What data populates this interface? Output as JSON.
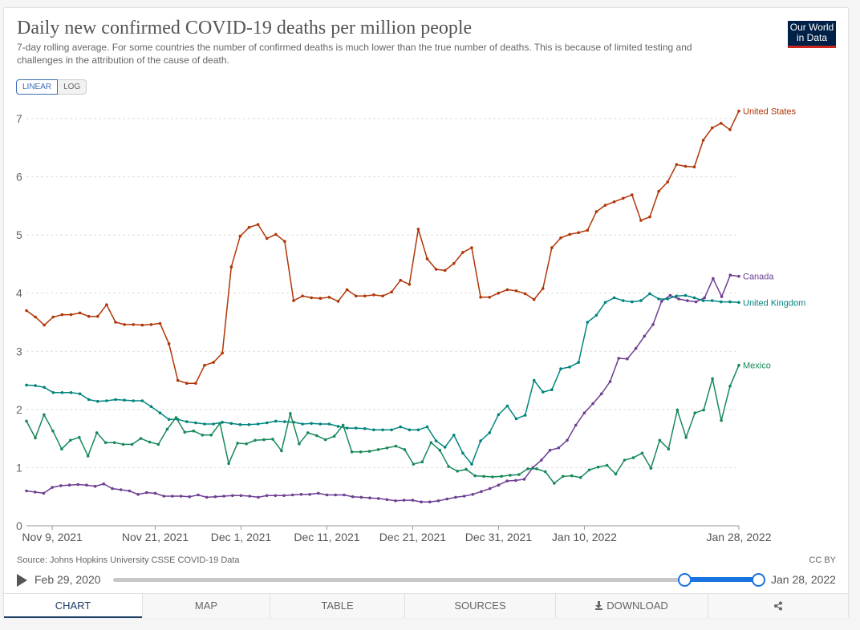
{
  "header": {
    "title": "Daily new confirmed COVID-19 deaths per million people",
    "subtitle": "7-day rolling average. For some countries the number of confirmed deaths is much lower than the true number of deaths. This is because of limited testing and challenges in the attribution of the cause of death.",
    "logo_line1": "Our World",
    "logo_line2": "in Data"
  },
  "scale": {
    "linear_label": "LINEAR",
    "log_label": "LOG",
    "active": "LINEAR"
  },
  "footer": {
    "source": "Source: Johns Hopkins University CSSE COVID-19 Data",
    "license": "CC BY"
  },
  "timeline": {
    "start_label": "Feb 29, 2020",
    "end_label": "Jan 28, 2022"
  },
  "tabs": {
    "chart": "CHART",
    "map": "MAP",
    "table": "TABLE",
    "sources": "SOURCES",
    "download": "DOWNLOAD"
  },
  "chart_data": {
    "type": "line",
    "title": "Daily new confirmed COVID-19 deaths per million people",
    "ylim": [
      0,
      7
    ],
    "yticks": [
      0,
      1,
      2,
      3,
      4,
      5,
      6,
      7
    ],
    "x_range": [
      "2021-11-06",
      "2022-01-28"
    ],
    "xticks": [
      {
        "date": "2021-11-09",
        "label": "Nov 9, 2021"
      },
      {
        "date": "2021-11-21",
        "label": "Nov 21, 2021"
      },
      {
        "date": "2021-12-01",
        "label": "Dec 1, 2021"
      },
      {
        "date": "2021-12-11",
        "label": "Dec 11, 2021"
      },
      {
        "date": "2021-12-21",
        "label": "Dec 21, 2021"
      },
      {
        "date": "2021-12-31",
        "label": "Dec 31, 2021"
      },
      {
        "date": "2022-01-10",
        "label": "Jan 10, 2022"
      },
      {
        "date": "2022-01-28",
        "label": "Jan 28, 2022"
      }
    ],
    "grid": true,
    "colors": {
      "United States": "#b13507",
      "Canada": "#6d3e91",
      "United Kingdom": "#00847e",
      "Mexico": "#18895a"
    },
    "series": [
      {
        "name": "United States",
        "values": [
          3.7,
          3.59,
          3.45,
          3.59,
          3.63,
          3.63,
          3.66,
          3.6,
          3.6,
          3.8,
          3.5,
          3.46,
          3.46,
          3.45,
          3.46,
          3.48,
          3.13,
          2.5,
          2.45,
          2.45,
          2.76,
          2.81,
          2.97,
          4.45,
          4.98,
          5.13,
          5.18,
          4.94,
          5.01,
          4.89,
          3.87,
          3.95,
          3.92,
          3.91,
          3.93,
          3.86,
          4.06,
          3.95,
          3.95,
          3.97,
          3.95,
          4.02,
          4.22,
          4.15,
          5.1,
          4.59,
          4.41,
          4.39,
          4.51,
          4.7,
          4.78,
          3.93,
          3.93,
          4.0,
          4.06,
          4.04,
          3.99,
          3.89,
          4.08,
          4.78,
          4.95,
          5.01,
          5.04,
          5.08,
          5.4,
          5.51,
          5.57,
          5.63,
          5.69,
          5.25,
          5.31,
          5.75,
          5.91,
          6.21,
          6.18,
          6.17,
          6.63,
          6.84,
          6.92,
          6.81,
          7.13
        ]
      },
      {
        "name": "Canada",
        "values": [
          0.6,
          0.58,
          0.56,
          0.66,
          0.69,
          0.7,
          0.71,
          0.7,
          0.68,
          0.72,
          0.64,
          0.62,
          0.6,
          0.54,
          0.57,
          0.56,
          0.51,
          0.51,
          0.51,
          0.5,
          0.53,
          0.49,
          0.5,
          0.51,
          0.52,
          0.52,
          0.51,
          0.49,
          0.52,
          0.52,
          0.52,
          0.53,
          0.54,
          0.54,
          0.56,
          0.53,
          0.53,
          0.53,
          0.5,
          0.49,
          0.48,
          0.47,
          0.45,
          0.43,
          0.44,
          0.44,
          0.41,
          0.41,
          0.43,
          0.46,
          0.49,
          0.51,
          0.54,
          0.59,
          0.64,
          0.7,
          0.77,
          0.78,
          0.8,
          1.0,
          1.13,
          1.3,
          1.34,
          1.47,
          1.73,
          1.94,
          2.1,
          2.27,
          2.48,
          2.88,
          2.87,
          3.05,
          3.26,
          3.46,
          3.86,
          3.96,
          3.9,
          3.87,
          3.85,
          3.92,
          4.25,
          3.94,
          4.31,
          4.29
        ]
      },
      {
        "name": "United Kingdom",
        "values": [
          2.42,
          2.41,
          2.38,
          2.29,
          2.29,
          2.29,
          2.27,
          2.17,
          2.14,
          2.15,
          2.17,
          2.16,
          2.15,
          2.15,
          2.05,
          1.94,
          1.83,
          1.83,
          1.79,
          1.77,
          1.75,
          1.75,
          1.78,
          1.76,
          1.74,
          1.74,
          1.75,
          1.77,
          1.8,
          1.79,
          1.78,
          1.75,
          1.76,
          1.75,
          1.75,
          1.71,
          1.68,
          1.68,
          1.67,
          1.65,
          1.65,
          1.65,
          1.7,
          1.65,
          1.65,
          1.7,
          1.46,
          1.35,
          1.56,
          1.25,
          1.06,
          1.46,
          1.6,
          1.91,
          2.06,
          1.84,
          1.9,
          2.5,
          2.3,
          2.34,
          2.7,
          2.73,
          2.81,
          3.5,
          3.62,
          3.84,
          3.92,
          3.87,
          3.85,
          3.87,
          3.99,
          3.9,
          3.9,
          3.95,
          3.96,
          3.92,
          3.87,
          3.87,
          3.85,
          3.85,
          3.84
        ]
      },
      {
        "name": "Mexico",
        "values": [
          1.8,
          1.51,
          1.91,
          1.63,
          1.32,
          1.47,
          1.52,
          1.2,
          1.6,
          1.43,
          1.43,
          1.4,
          1.4,
          1.5,
          1.44,
          1.4,
          1.66,
          1.86,
          1.61,
          1.63,
          1.56,
          1.56,
          1.76,
          1.07,
          1.42,
          1.41,
          1.47,
          1.48,
          1.49,
          1.29,
          1.93,
          1.41,
          1.6,
          1.55,
          1.48,
          1.54,
          1.73,
          1.27,
          1.27,
          1.28,
          1.31,
          1.34,
          1.37,
          1.31,
          1.06,
          1.1,
          1.43,
          1.3,
          1.02,
          0.94,
          0.97,
          0.86,
          0.85,
          0.84,
          0.85,
          0.87,
          0.88,
          0.98,
          0.98,
          0.93,
          0.73,
          0.85,
          0.86,
          0.83,
          0.96,
          1.01,
          1.04,
          0.89,
          1.13,
          1.17,
          1.25,
          0.99,
          1.47,
          1.32,
          1.99,
          1.52,
          1.94,
          1.99,
          2.53,
          1.81,
          2.4,
          2.76
        ]
      }
    ]
  }
}
